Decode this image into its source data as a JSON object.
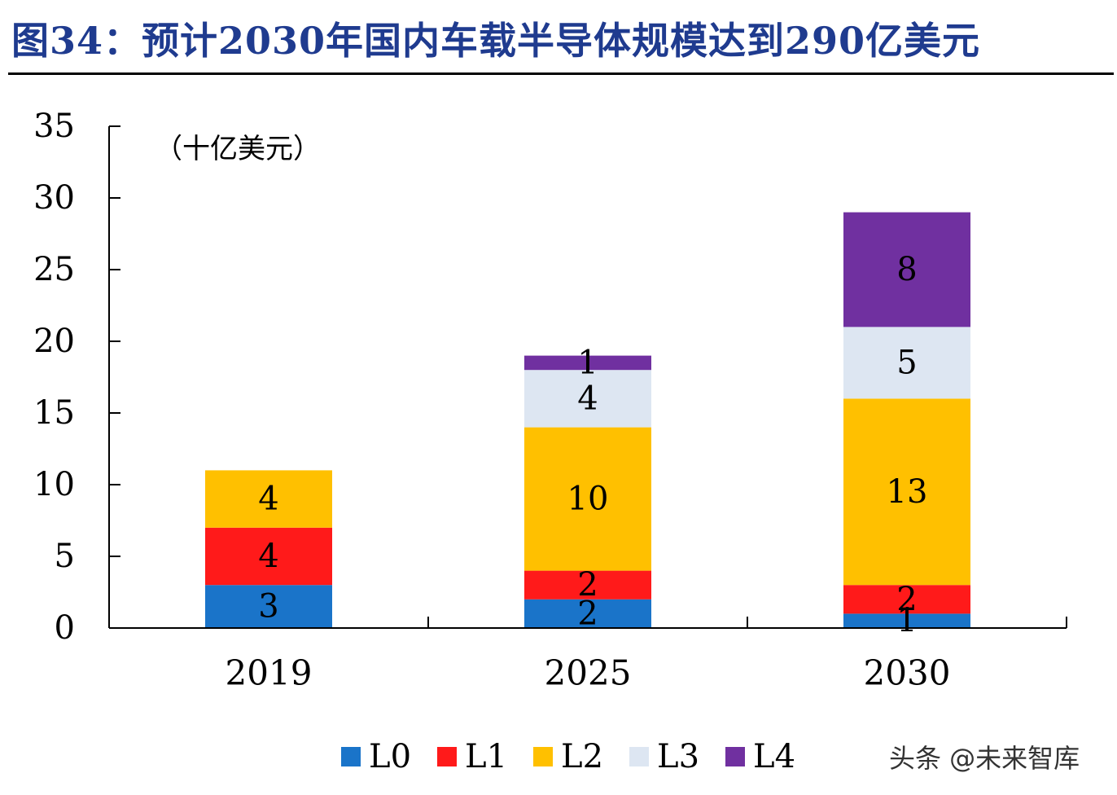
{
  "figure": {
    "title": "图34：预计2030年国内车载半导体规模达到290亿美元"
  },
  "watermark": "头条 @未来智库",
  "chart_data": {
    "type": "bar",
    "stacked": true,
    "unit_label": "（十亿美元）",
    "categories": [
      "2019",
      "2025",
      "2030"
    ],
    "series": [
      {
        "name": "L0",
        "color": "#1a74c9",
        "values": [
          3,
          2,
          1
        ]
      },
      {
        "name": "L1",
        "color": "#ff1a1a",
        "values": [
          4,
          2,
          2
        ]
      },
      {
        "name": "L2",
        "color": "#ffc000",
        "values": [
          4,
          10,
          13
        ]
      },
      {
        "name": "L3",
        "color": "#dde6f2",
        "values": [
          0,
          4,
          5
        ]
      },
      {
        "name": "L4",
        "color": "#7030a0",
        "values": [
          0,
          1,
          8
        ]
      }
    ],
    "ylim": [
      0,
      35
    ],
    "yticks": [
      0,
      5,
      10,
      15,
      20,
      25,
      30,
      35
    ],
    "grid": false,
    "legend_position": "bottom"
  }
}
